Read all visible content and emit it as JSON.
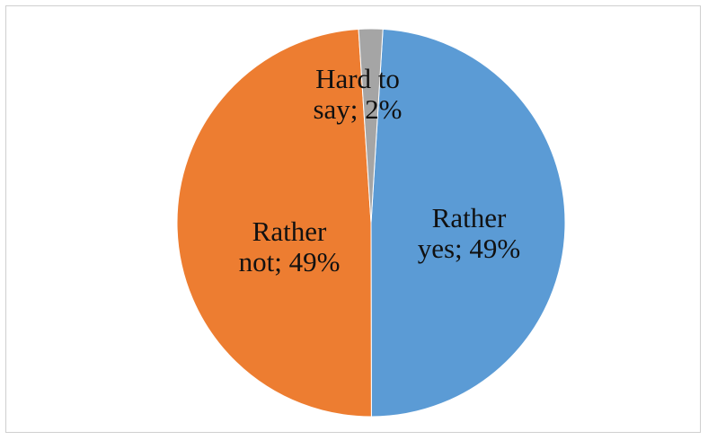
{
  "chart_data": {
    "type": "pie",
    "title": "",
    "slices": [
      {
        "name": "Rather yes",
        "value": 49,
        "label_lines": [
          "Rather",
          "yes; 49%"
        ],
        "color": "#5b9bd5"
      },
      {
        "name": "Rather not",
        "value": 49,
        "label_lines": [
          "Rather",
          "not; 49%"
        ],
        "color": "#ed7d31"
      },
      {
        "name": "Hard to say",
        "value": 2,
        "label_lines": [
          "Hard to",
          "say; 2%"
        ],
        "color": "#a5a5a5"
      }
    ]
  }
}
